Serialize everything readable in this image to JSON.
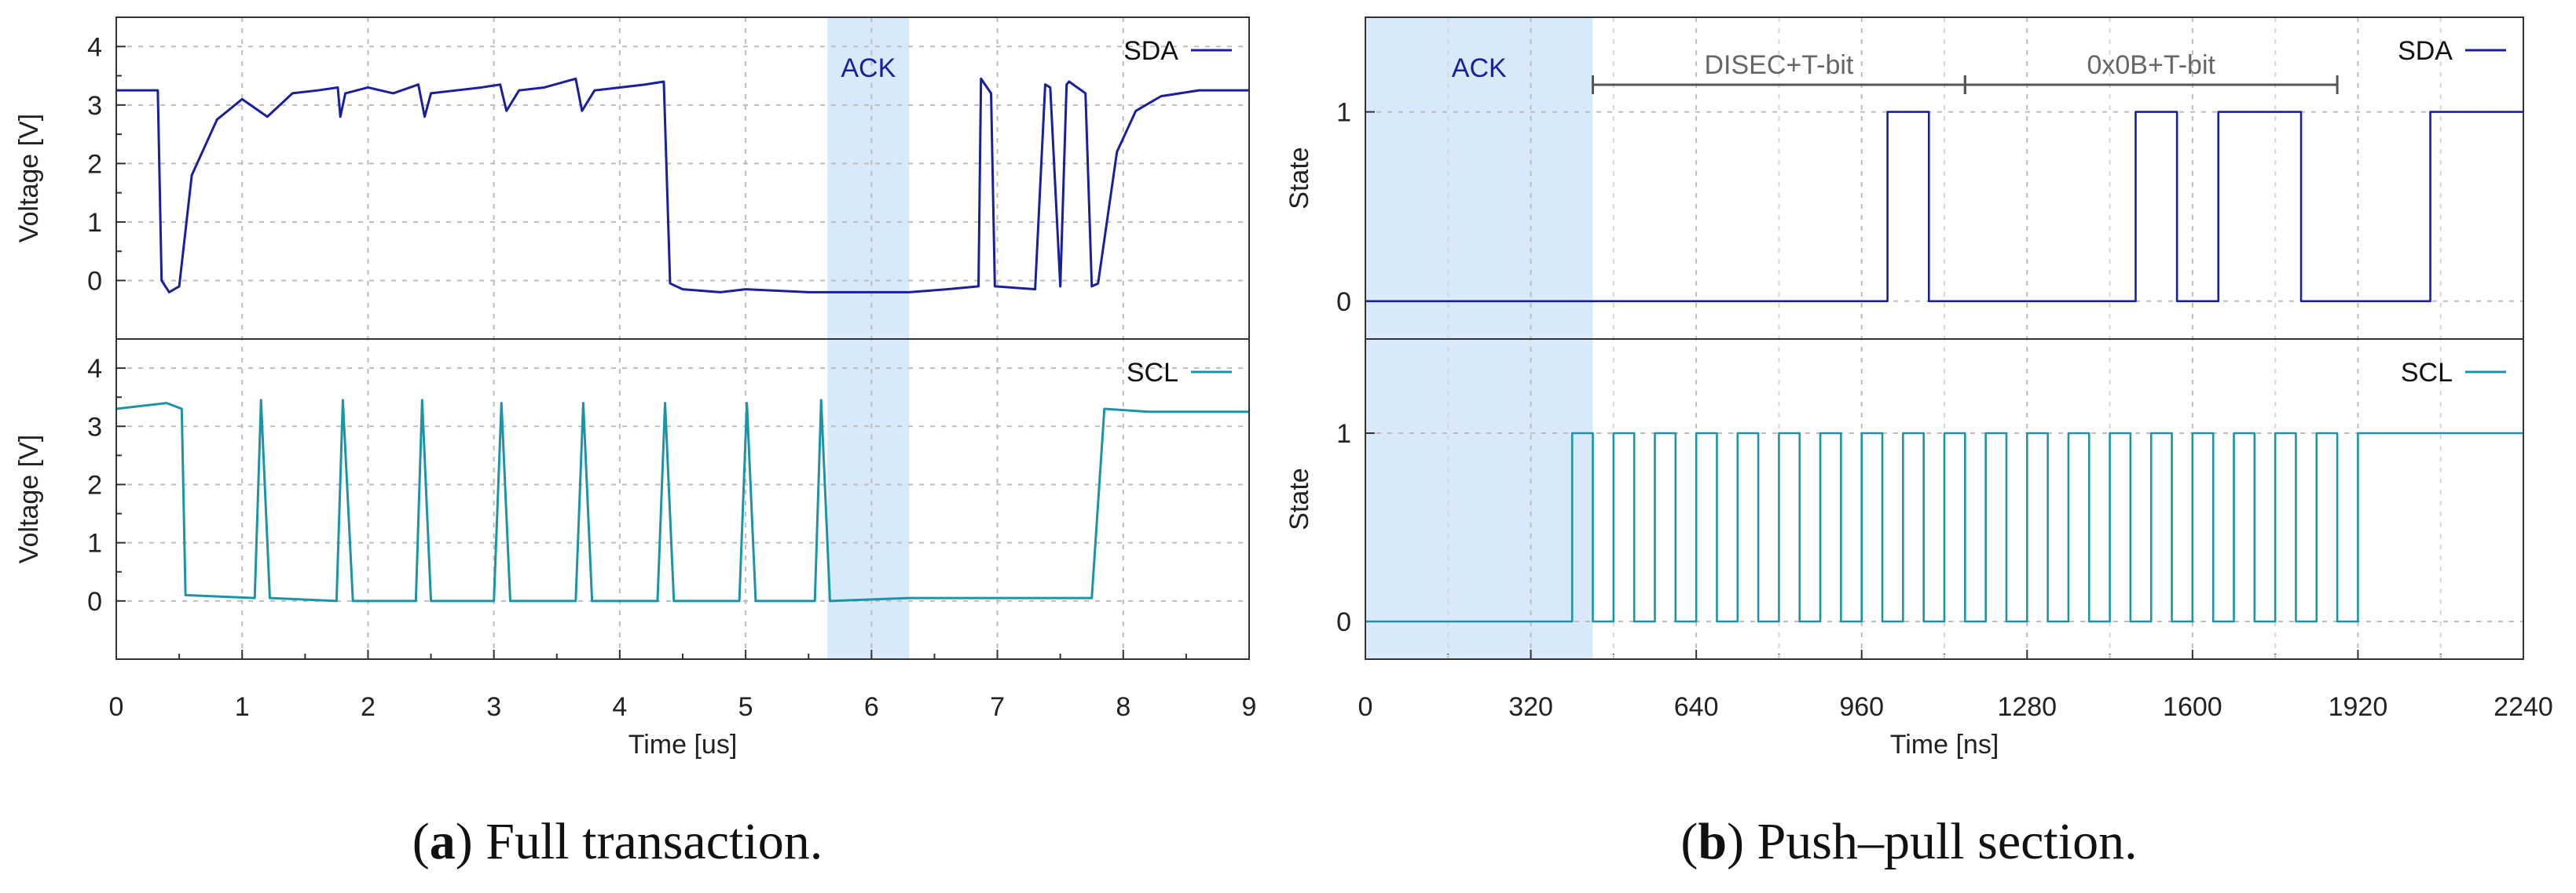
{
  "colors": {
    "sda": "#1a1f9e",
    "scl": "#1c93a6",
    "ack_band": "#d8eafa",
    "ack_text": "#1a1f9e",
    "bracket": "#555555"
  },
  "captions": {
    "a": {
      "letter": "a",
      "text": ") Full transaction."
    },
    "b": {
      "letter": "b",
      "text": ") Push–pull section."
    }
  },
  "chart_data": [
    {
      "id": "a",
      "type": "line",
      "xlabel": "Time [us]",
      "xlim": [
        0,
        9
      ],
      "xticks": [
        "0",
        "1",
        "2",
        "3",
        "4",
        "5",
        "6",
        "7",
        "8",
        "9"
      ],
      "grid": true,
      "legend_position": "top-right",
      "highlight": {
        "label": "ACK",
        "x": [
          5.65,
          6.3
        ]
      },
      "panels": [
        {
          "ylabel": "Voltage [V]",
          "ylim": [
            -1,
            4.5
          ],
          "yticks": [
            "0",
            "1",
            "2",
            "3",
            "4"
          ],
          "series": [
            {
              "name": "SDA",
              "x": [
                0,
                0.33,
                0.36,
                0.42,
                0.5,
                0.6,
                0.8,
                1.0,
                1.2,
                1.4,
                1.6,
                1.76,
                1.78,
                1.82,
                2.0,
                2.2,
                2.4,
                2.45,
                2.5,
                2.7,
                2.9,
                3.05,
                3.1,
                3.2,
                3.4,
                3.65,
                3.7,
                3.8,
                4.0,
                4.2,
                4.35,
                4.4,
                4.5,
                4.8,
                5.0,
                5.5,
                6.0,
                6.3,
                6.6,
                6.85,
                6.87,
                6.95,
                6.98,
                7.3,
                7.38,
                7.42,
                7.5,
                7.55,
                7.57,
                7.7,
                7.75,
                7.8,
                7.95,
                8.1,
                8.3,
                8.6,
                9
              ],
              "y": [
                3.25,
                3.25,
                0,
                -0.2,
                -0.1,
                1.8,
                2.75,
                3.1,
                2.8,
                3.2,
                3.25,
                3.3,
                2.8,
                3.2,
                3.3,
                3.2,
                3.35,
                2.8,
                3.2,
                3.25,
                3.3,
                3.35,
                2.9,
                3.25,
                3.3,
                3.45,
                2.9,
                3.25,
                3.3,
                3.35,
                3.4,
                -0.05,
                -0.15,
                -0.2,
                -0.15,
                -0.2,
                -0.2,
                -0.2,
                -0.15,
                -0.1,
                3.45,
                3.2,
                -0.1,
                -0.15,
                3.35,
                3.3,
                -0.1,
                3.35,
                3.4,
                3.2,
                -0.1,
                -0.05,
                2.2,
                2.9,
                3.15,
                3.25,
                3.25
              ]
            }
          ]
        },
        {
          "ylabel": "Voltage [V]",
          "ylim": [
            -1,
            4.5
          ],
          "yticks": [
            "0",
            "1",
            "2",
            "3",
            "4"
          ],
          "series": [
            {
              "name": "SCL",
              "x": [
                0,
                0.4,
                0.52,
                0.55,
                1.1,
                1.15,
                1.22,
                1.75,
                1.8,
                1.88,
                2.38,
                2.43,
                2.5,
                3.0,
                3.06,
                3.13,
                3.65,
                3.71,
                3.78,
                4.3,
                4.36,
                4.43,
                4.95,
                5.01,
                5.08,
                5.55,
                5.6,
                5.67,
                6.3,
                7.75,
                7.85,
                8.2,
                9
              ],
              "y": [
                3.3,
                3.4,
                3.3,
                0.1,
                0.05,
                3.45,
                0.05,
                0.0,
                3.45,
                0.0,
                0.0,
                3.45,
                0.0,
                0.0,
                3.4,
                0.0,
                0.0,
                3.4,
                0.0,
                0.0,
                3.4,
                0.0,
                0.0,
                3.4,
                0.0,
                0.0,
                3.45,
                0.0,
                0.05,
                0.05,
                3.3,
                3.25,
                3.25
              ]
            }
          ]
        }
      ]
    },
    {
      "id": "b",
      "type": "line",
      "xlabel": "Time [ns]",
      "xlim": [
        0,
        2240
      ],
      "xticks": [
        "0",
        "320",
        "640",
        "960",
        "1280",
        "1600",
        "1920",
        "2240"
      ],
      "grid": true,
      "legend_position": "top-right",
      "highlight": {
        "label": "ACK",
        "x": [
          0,
          440
        ]
      },
      "annotations": [
        {
          "label": "DISEC+T-bit",
          "x": [
            440,
            1160
          ]
        },
        {
          "label": "0x0B+T-bit",
          "x": [
            1160,
            1880
          ]
        }
      ],
      "panels": [
        {
          "ylabel": "State",
          "ylim": [
            -0.2,
            1.5
          ],
          "yticks": [
            "0",
            "1"
          ],
          "series": [
            {
              "name": "SDA",
              "step": true,
              "x": [
                0,
                1010,
                1090,
                1490,
                1570,
                1650,
                1810,
                2060,
                2240
              ],
              "y": [
                0,
                1,
                0,
                1,
                0,
                1,
                0,
                1,
                1
              ]
            }
          ]
        },
        {
          "ylabel": "State",
          "ylim": [
            -0.2,
            1.5
          ],
          "yticks": [
            "0",
            "1"
          ],
          "series": [
            {
              "name": "SCL",
              "step": true,
              "x": [
                0,
                400,
                440,
                480,
                520,
                560,
                600,
                640,
                680,
                720,
                760,
                800,
                840,
                880,
                920,
                960,
                1000,
                1040,
                1080,
                1120,
                1160,
                1200,
                1240,
                1280,
                1320,
                1360,
                1400,
                1440,
                1480,
                1520,
                1560,
                1600,
                1640,
                1680,
                1720,
                1760,
                1800,
                1840,
                1880,
                1920,
                2240
              ],
              "y": [
                0,
                1,
                0,
                1,
                0,
                1,
                0,
                1,
                0,
                1,
                0,
                1,
                0,
                1,
                0,
                1,
                0,
                1,
                0,
                1,
                0,
                1,
                0,
                1,
                0,
                1,
                0,
                1,
                0,
                1,
                0,
                1,
                0,
                1,
                0,
                1,
                0,
                1,
                0,
                1,
                1
              ]
            }
          ]
        }
      ]
    }
  ]
}
